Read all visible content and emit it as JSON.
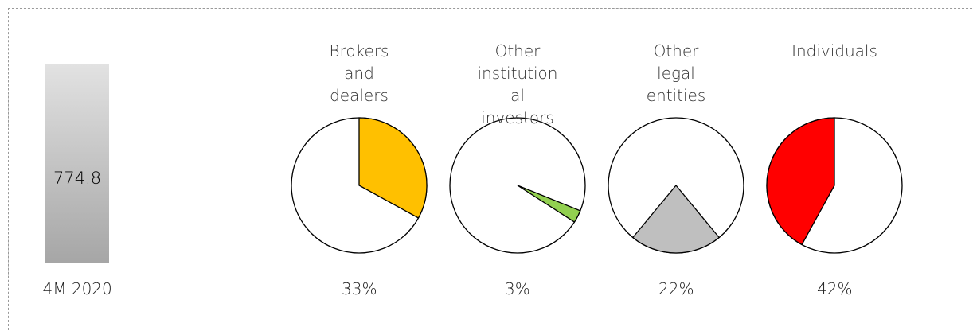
{
  "chart_data": [
    {
      "type": "bar",
      "categories": [
        "4M 2020"
      ],
      "values": [
        774.8
      ]
    },
    {
      "type": "pie",
      "title": "Brokers and dealers",
      "values": [
        33
      ],
      "value_labels": [
        "33%"
      ],
      "color": "#ffc000"
    },
    {
      "type": "pie",
      "title": "Other institutional investors",
      "values": [
        3
      ],
      "value_labels": [
        "3%"
      ],
      "color": "#92d050"
    },
    {
      "type": "pie",
      "title": "Other legal entities",
      "values": [
        22
      ],
      "value_labels": [
        "22%"
      ],
      "color": "#bfbfbf"
    },
    {
      "type": "pie",
      "title": "Individuals",
      "values": [
        42
      ],
      "value_labels": [
        "42%"
      ],
      "color": "#ff0000"
    }
  ]
}
